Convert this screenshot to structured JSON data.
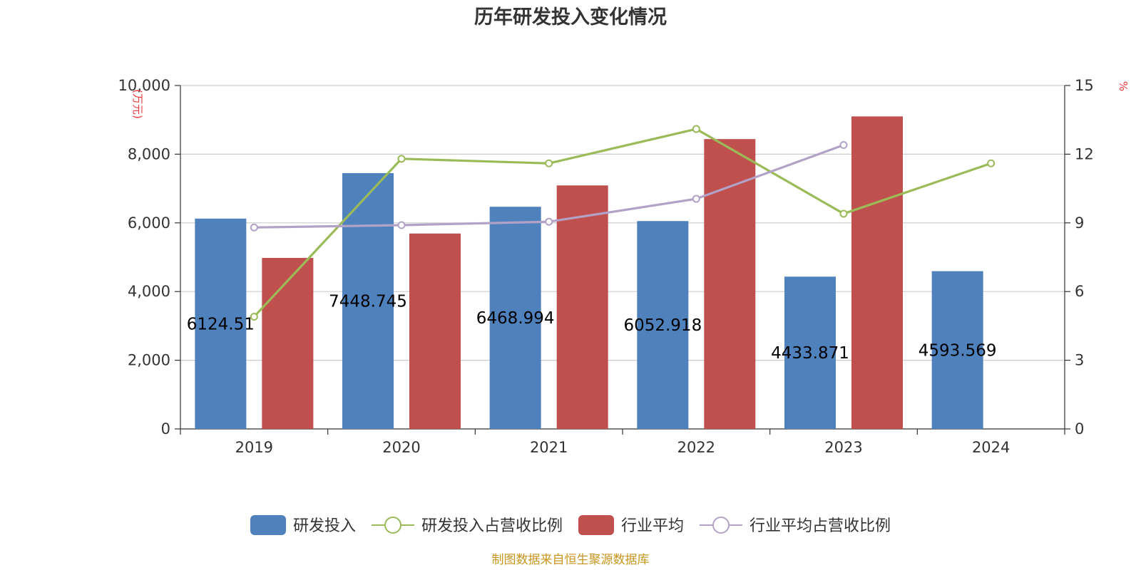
{
  "chart_data": {
    "type": "bar",
    "title": "历年研发投入变化情况",
    "categories": [
      "2019",
      "2020",
      "2021",
      "2022",
      "2023",
      "2024"
    ],
    "y_left": {
      "unit": "(万元)",
      "range": [
        0,
        10000
      ],
      "ticks": [
        "0",
        "2,000",
        "4,000",
        "6,000",
        "8,000",
        "10,000"
      ],
      "tick_values": [
        0,
        2000,
        4000,
        6000,
        8000,
        10000
      ]
    },
    "y_right": {
      "unit": "%",
      "range": [
        0,
        15
      ],
      "ticks": [
        "0",
        "3",
        "6",
        "9",
        "12",
        "15"
      ],
      "tick_values": [
        0,
        3,
        6,
        9,
        12,
        15
      ]
    },
    "grid": true,
    "legend_position": "bottom-center",
    "series": [
      {
        "name": "研发投入",
        "type": "bar",
        "axis": "left",
        "color": "#4f81bd",
        "values": [
          6124.51,
          7448.745,
          6468.994,
          6052.918,
          4433.871,
          4593.569
        ],
        "labels": [
          "6124.51",
          "7448.745",
          "6468.994",
          "6052.918",
          "4433.871",
          "4593.569"
        ]
      },
      {
        "name": "研发投入占营收比例",
        "type": "line",
        "axis": "right",
        "color": "#9bbb59",
        "values": [
          4.9,
          11.8,
          11.6,
          13.1,
          9.4,
          11.6
        ]
      },
      {
        "name": "行业平均",
        "type": "bar",
        "axis": "left",
        "color": "#c0504d",
        "values": [
          4980,
          5690,
          7090,
          8440,
          9100,
          null
        ]
      },
      {
        "name": "行业平均占营收比例",
        "type": "line",
        "axis": "right",
        "color": "#b3a2c7",
        "values": [
          8.8,
          8.9,
          9.05,
          10.05,
          12.4,
          null
        ]
      }
    ]
  },
  "source": "制图数据来自恒生聚源数据库"
}
